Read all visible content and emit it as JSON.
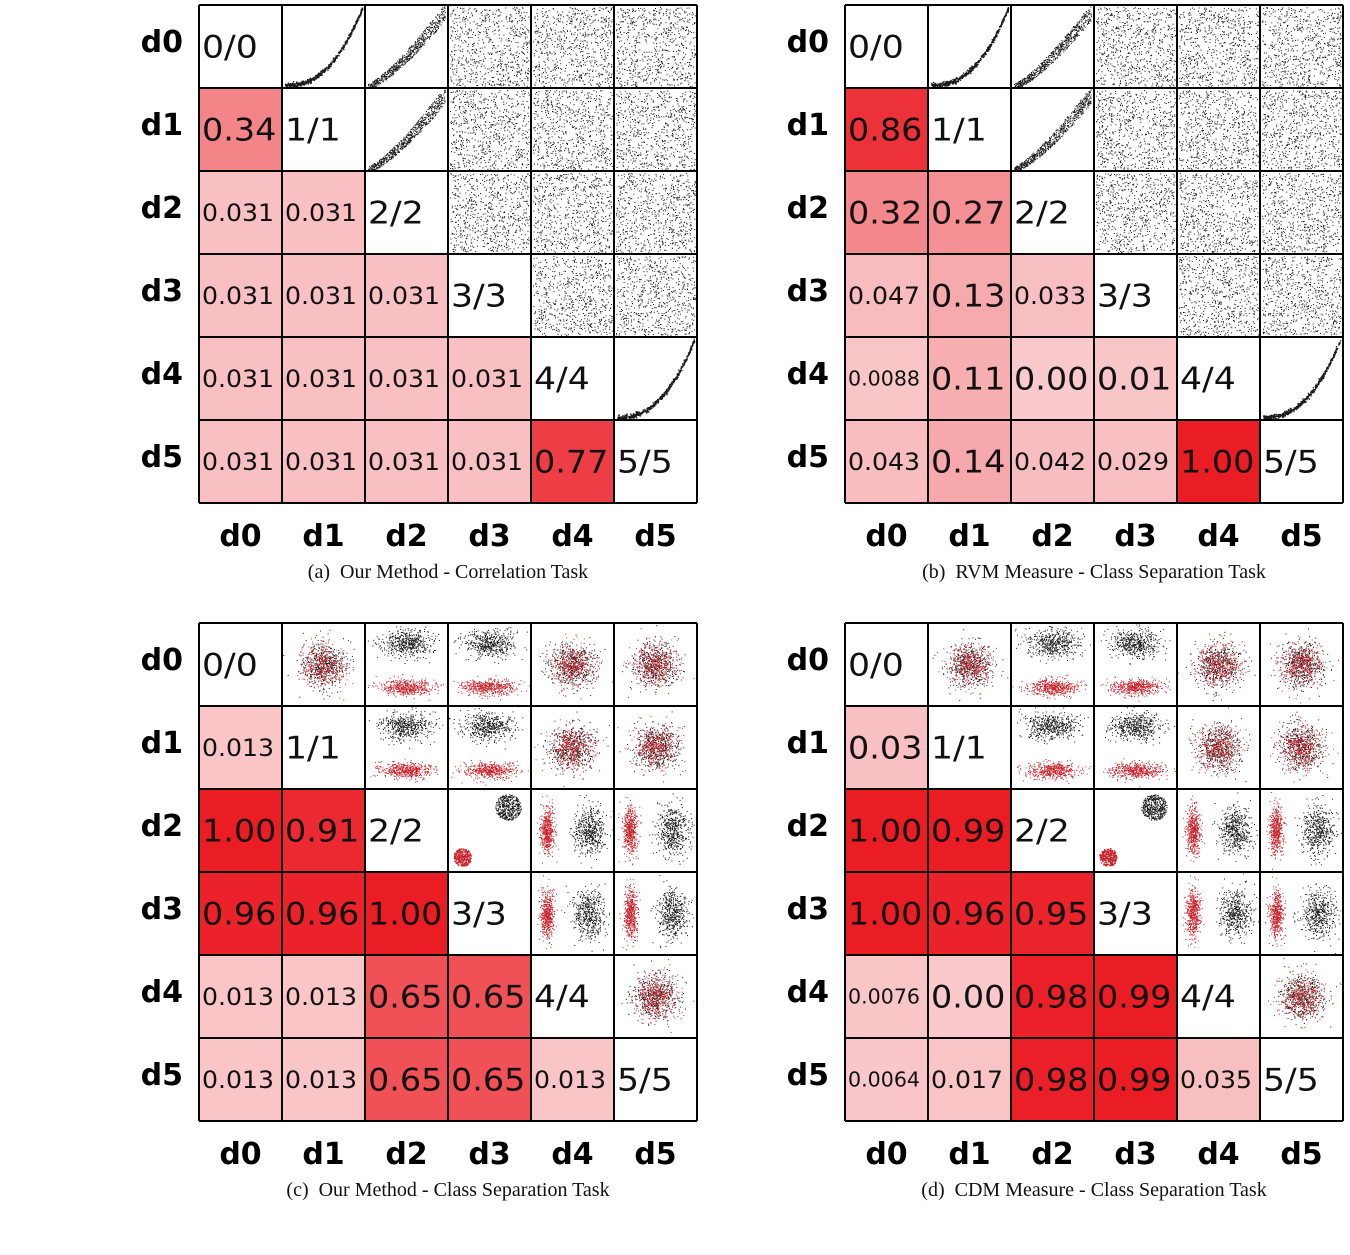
{
  "chart_data": [
    {
      "type": "heatmap",
      "caption_label": "(a)",
      "caption_text": "Our Method - Correlation Task",
      "rows": [
        "d0",
        "d1",
        "d2",
        "d3",
        "d4",
        "d5"
      ],
      "cols": [
        "d0",
        "d1",
        "d2",
        "d3",
        "d4",
        "d5"
      ],
      "diagonal": [
        "0/0",
        "1/1",
        "2/2",
        "3/3",
        "4/4",
        "5/5"
      ],
      "lower": [
        [
          "0.34"
        ],
        [
          "0.031",
          "0.031"
        ],
        [
          "0.031",
          "0.031",
          "0.031"
        ],
        [
          "0.031",
          "0.031",
          "0.031",
          "0.031"
        ],
        [
          "0.031",
          "0.031",
          "0.031",
          "0.031",
          "0.77"
        ]
      ],
      "upper_scatter": [
        [
          "curve",
          "wedge",
          "noise",
          "noise",
          "noise"
        ],
        [
          "wedge",
          "noise",
          "noise",
          "noise"
        ],
        [
          "noise",
          "noise",
          "noise"
        ],
        [
          "noise",
          "noise"
        ],
        [
          "curve"
        ]
      ]
    },
    {
      "type": "heatmap",
      "caption_label": "(b)",
      "caption_text": "RVM Measure - Class Separation Task",
      "rows": [
        "d0",
        "d1",
        "d2",
        "d3",
        "d4",
        "d5"
      ],
      "cols": [
        "d0",
        "d1",
        "d2",
        "d3",
        "d4",
        "d5"
      ],
      "diagonal": [
        "0/0",
        "1/1",
        "2/2",
        "3/3",
        "4/4",
        "5/5"
      ],
      "lower": [
        [
          "0.86"
        ],
        [
          "0.32",
          "0.27"
        ],
        [
          "0.047",
          "0.13",
          "0.033"
        ],
        [
          "0.0088",
          "0.11",
          "0.00",
          "0.01"
        ],
        [
          "0.043",
          "0.14",
          "0.042",
          "0.029",
          "1.00"
        ]
      ],
      "upper_scatter": [
        [
          "curve",
          "wedge",
          "noise",
          "noise",
          "noise"
        ],
        [
          "wedge",
          "noise",
          "noise",
          "noise"
        ],
        [
          "noise",
          "noise",
          "noise"
        ],
        [
          "noise",
          "noise"
        ],
        [
          "curve"
        ]
      ]
    },
    {
      "type": "heatmap",
      "caption_label": "(c)",
      "caption_text": "Our Method - Class Separation Task",
      "rows": [
        "d0",
        "d1",
        "d2",
        "d3",
        "d4",
        "d5"
      ],
      "cols": [
        "d0",
        "d1",
        "d2",
        "d3",
        "d4",
        "d5"
      ],
      "diagonal": [
        "0/0",
        "1/1",
        "2/2",
        "3/3",
        "4/4",
        "5/5"
      ],
      "lower": [
        [
          "0.013"
        ],
        [
          "1.00",
          "0.91"
        ],
        [
          "0.96",
          "0.96",
          "1.00"
        ],
        [
          "0.013",
          "0.013",
          "0.65",
          "0.65"
        ],
        [
          "0.013",
          "0.013",
          "0.65",
          "0.65",
          "0.013"
        ]
      ],
      "upper_scatter": [
        [
          "blob",
          "bands",
          "bands",
          "blob",
          "blob"
        ],
        [
          "bands",
          "bands",
          "blob",
          "blob"
        ],
        [
          "twoblob",
          "vbands",
          "vbands"
        ],
        [
          "vbands",
          "vbands"
        ],
        [
          "blob"
        ]
      ]
    },
    {
      "type": "heatmap",
      "caption_label": "(d)",
      "caption_text": "CDM Measure - Class Separation Task",
      "rows": [
        "d0",
        "d1",
        "d2",
        "d3",
        "d4",
        "d5"
      ],
      "cols": [
        "d0",
        "d1",
        "d2",
        "d3",
        "d4",
        "d5"
      ],
      "diagonal": [
        "0/0",
        "1/1",
        "2/2",
        "3/3",
        "4/4",
        "5/5"
      ],
      "lower": [
        [
          "0.03"
        ],
        [
          "1.00",
          "0.99"
        ],
        [
          "1.00",
          "0.96",
          "0.95"
        ],
        [
          "0.0076",
          "0.00",
          "0.98",
          "0.99"
        ],
        [
          "0.0064",
          "0.017",
          "0.98",
          "0.99",
          "0.035"
        ]
      ],
      "upper_scatter": [
        [
          "blob",
          "bands",
          "bands",
          "blob",
          "blob"
        ],
        [
          "bands",
          "bands",
          "blob",
          "blob"
        ],
        [
          "twoblob",
          "vbands",
          "vbands"
        ],
        [
          "vbands",
          "vbands"
        ],
        [
          "blob"
        ]
      ]
    }
  ]
}
